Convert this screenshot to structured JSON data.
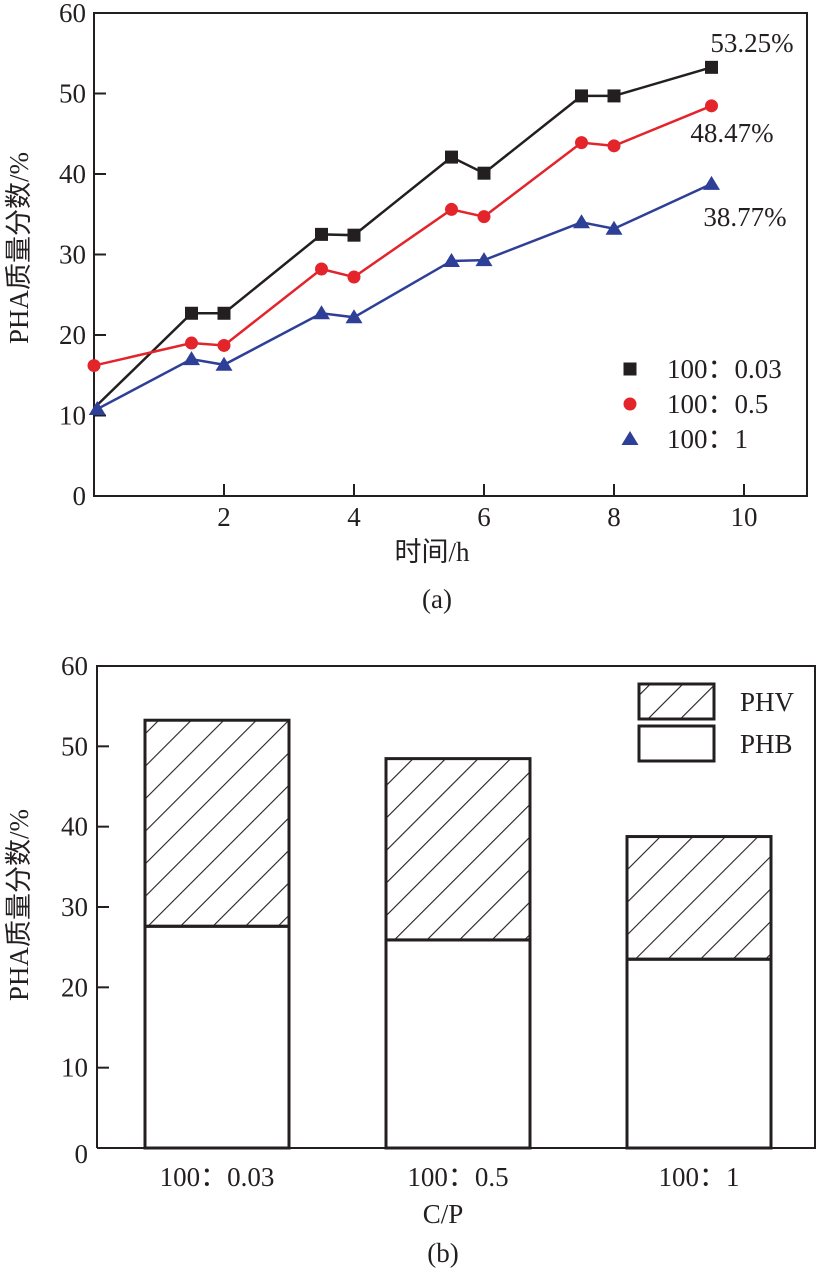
{
  "chart_data": [
    {
      "id": "a",
      "type": "line",
      "caption": "(a)",
      "xlabel": "时间/h",
      "ylabel": "PHA质量分数/%",
      "xlim": [
        0,
        11
      ],
      "ylim": [
        0,
        60
      ],
      "xticks": [
        2,
        4,
        6,
        8,
        10
      ],
      "yticks": [
        0,
        10,
        20,
        30,
        40,
        50,
        60
      ],
      "grid": false,
      "legend_position": "bottom-right",
      "series": [
        {
          "name": "100：0.03",
          "marker": "square",
          "color": "#231f20",
          "x": [
            0.05,
            1.5,
            2,
            3.5,
            4,
            5.5,
            6,
            7.5,
            8,
            9.5
          ],
          "y": [
            11.3,
            22.7,
            22.7,
            32.5,
            32.4,
            42.1,
            40.1,
            49.7,
            49.7,
            53.25
          ],
          "end_label": "53.25%"
        },
        {
          "name": "100：0.5",
          "marker": "circle",
          "color": "#e3242b",
          "x": [
            0,
            1.5,
            2,
            3.5,
            4,
            5.5,
            6,
            7.5,
            8,
            9.5
          ],
          "y": [
            16.2,
            19.0,
            18.7,
            28.2,
            27.2,
            35.6,
            34.7,
            43.9,
            43.5,
            48.47
          ],
          "end_label": "48.47%"
        },
        {
          "name": "100：1",
          "marker": "triangle",
          "color": "#2e3f98",
          "x": [
            0.05,
            1.5,
            2,
            3.5,
            4,
            5.5,
            6,
            7.5,
            8,
            9.5
          ],
          "y": [
            10.8,
            17.0,
            16.3,
            22.7,
            22.2,
            29.2,
            29.3,
            34.0,
            33.2,
            38.77
          ],
          "end_label": "38.77%"
        }
      ]
    },
    {
      "id": "b",
      "type": "bar",
      "stacked": true,
      "caption": "(b)",
      "xlabel": "C/P",
      "ylabel": "PHA质量分数/%",
      "ylim": [
        0,
        60
      ],
      "yticks": [
        0,
        10,
        20,
        30,
        40,
        50,
        60
      ],
      "grid": false,
      "legend_position": "top-right",
      "categories": [
        "100：0.03",
        "100：0.5",
        "100：1"
      ],
      "series": [
        {
          "name": "PHB",
          "pattern": "none",
          "values": [
            27.6,
            25.9,
            23.5
          ]
        },
        {
          "name": "PHV",
          "pattern": "diagonal-hatch",
          "values": [
            25.65,
            22.57,
            15.27
          ]
        }
      ],
      "legend_order": [
        "PHV",
        "PHB"
      ]
    }
  ]
}
